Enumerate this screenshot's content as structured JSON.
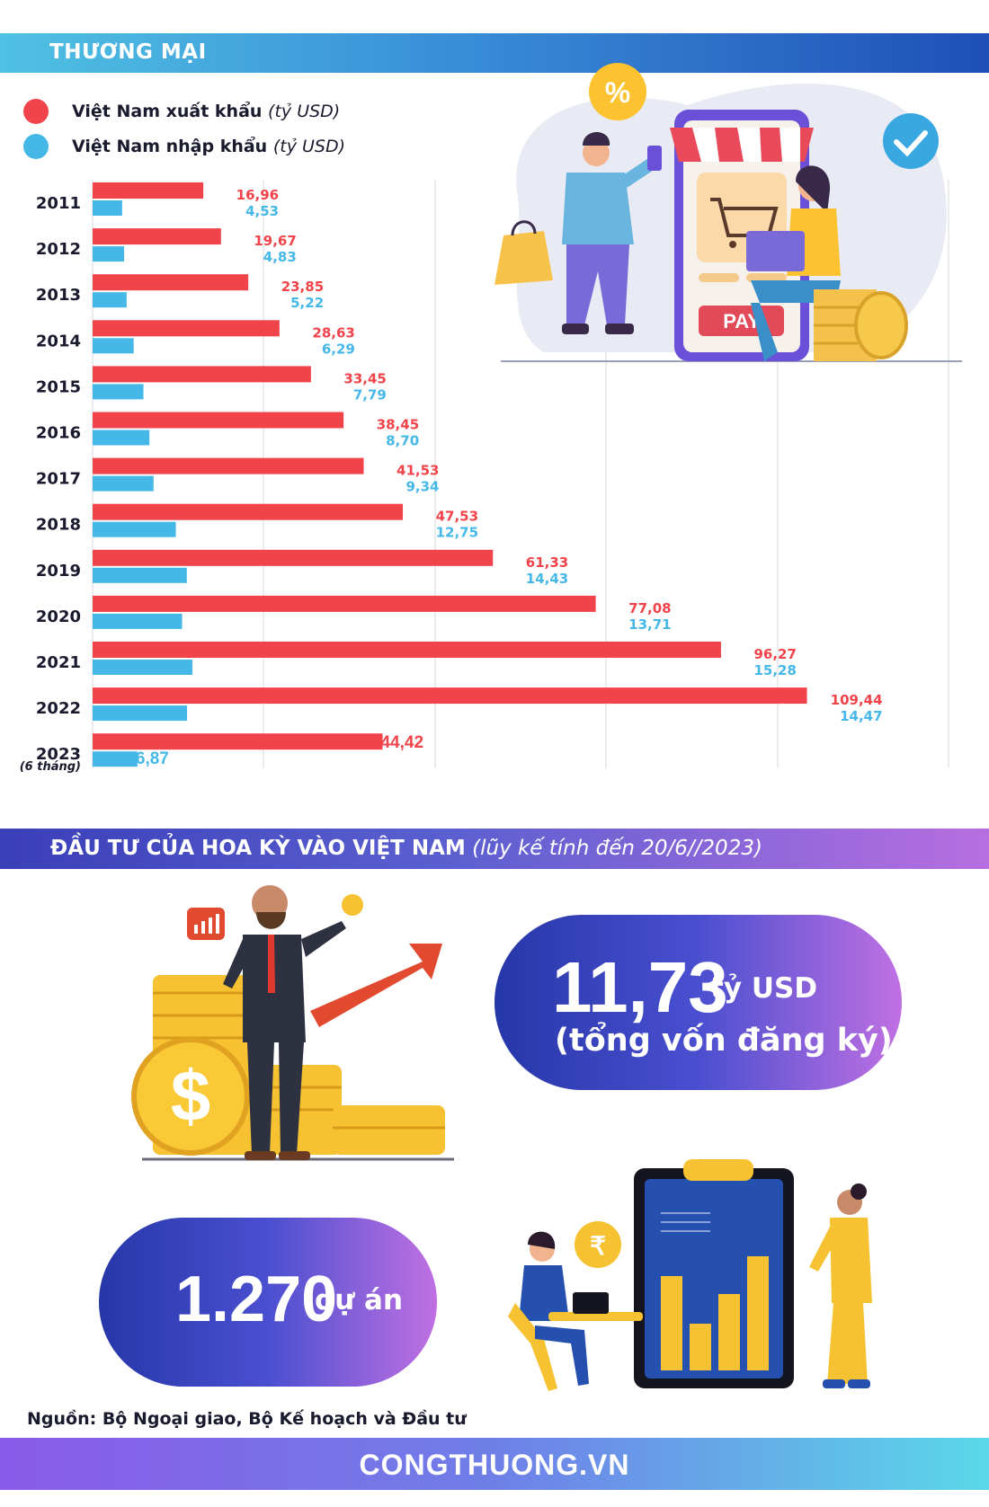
{
  "trade": {
    "header": "THƯƠNG MẠI",
    "legend": [
      {
        "label": "Việt Nam xuất khẩu",
        "unit": "(tỷ USD)",
        "color": "#f0434a"
      },
      {
        "label": "Việt Nam nhập khẩu",
        "unit": "(tỷ USD)",
        "color": "#45b8e8"
      }
    ]
  },
  "chart_data": {
    "type": "bar",
    "orientation": "horizontal",
    "categories": [
      "2011",
      "2012",
      "2013",
      "2014",
      "2015",
      "2016",
      "2017",
      "2018",
      "2019",
      "2020",
      "2021",
      "2022",
      "2023"
    ],
    "category_notes": {
      "2023": "(6 tháng)"
    },
    "series": [
      {
        "name": "Việt Nam xuất khẩu",
        "color": "#f0434a",
        "values": [
          16.96,
          19.67,
          23.85,
          28.63,
          33.45,
          38.45,
          41.53,
          47.53,
          61.33,
          77.08,
          96.27,
          109.44,
          44.42
        ],
        "labels": [
          "16,96",
          "19,67",
          "23,85",
          "28,63",
          "33,45",
          "38,45",
          "41,53",
          "47,53",
          "61,33",
          "77,08",
          "96,27",
          "109,44",
          "44,42"
        ]
      },
      {
        "name": "Việt Nam nhập khẩu",
        "color": "#45b8e8",
        "values": [
          4.53,
          4.83,
          5.22,
          6.29,
          7.79,
          8.7,
          9.34,
          12.75,
          14.43,
          13.71,
          15.28,
          14.47,
          6.87
        ],
        "labels": [
          "4,53",
          "4,83",
          "5,22",
          "6,29",
          "7,79",
          "8,70",
          "9,34",
          "12,75",
          "14,43",
          "13,71",
          "15,28",
          "14,47",
          "6,87"
        ]
      }
    ],
    "grid": true,
    "legend_position": "top-left"
  },
  "investment": {
    "header": "ĐẦU TƯ CỦA HOA KỲ VÀO VIỆT NAM",
    "header_note": "(lũy kế tính đến 20/6//2023)",
    "capital_value": "11,73",
    "capital_unit": "tỷ USD",
    "capital_label": "(tổng vốn đăng ký)",
    "projects_value": "1.270",
    "projects_unit": "dự án"
  },
  "illustrations": {
    "pay_label": "PAY",
    "percent_label": "%"
  },
  "source": "Nguồn: Bộ Ngoại giao, Bộ Kế hoạch và Đầu tư",
  "footer": "CONGTHUONG.VN"
}
